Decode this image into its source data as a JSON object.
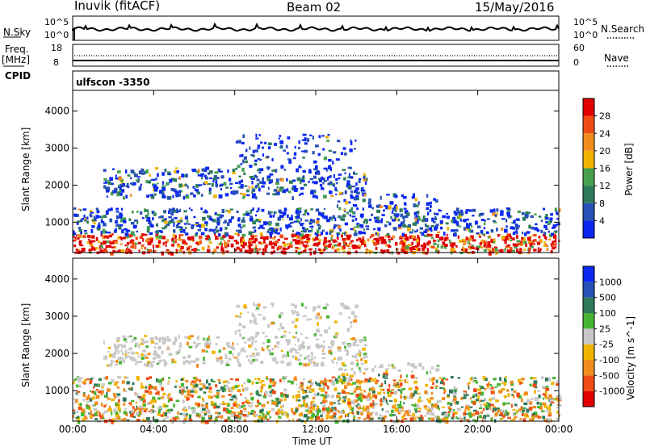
{
  "header": {
    "station": "Inuvik (fitACF)",
    "beam": "Beam 02",
    "date": "15/May/2016"
  },
  "top_panels": {
    "nsky_label": "N.Sky",
    "nsky_ticks": [
      "10^5",
      "10^0"
    ],
    "nsearch_label": "N.Search",
    "nsearch_ticks": [
      "10^5",
      "10^0"
    ],
    "freq_label": "Freq.",
    "freq_unit": "[MHz]",
    "freq_ticks": [
      "18",
      "8"
    ],
    "nave_label": "Nave",
    "nave_ticks": [
      "60",
      "0"
    ],
    "cpid_label": "CPID",
    "cpid_value": "ulfscon -3350"
  },
  "colors": {
    "power_scale": [
      "#0a28f0",
      "#2850b4",
      "#2e7a5a",
      "#46a050",
      "#f0b400",
      "#f08c1e",
      "#f04b14",
      "#e00000"
    ],
    "velocity_scale": [
      "#e00000",
      "#f04b14",
      "#f08c1e",
      "#f0b400",
      "#c8c8c8",
      "#46b432",
      "#2e7a5a",
      "#2850b4",
      "#0a28f0"
    ]
  },
  "chart_data": [
    {
      "type": "heatmap",
      "quantity": "power",
      "xlabel": "Time UT",
      "ylabel": "Slant Range [km]",
      "x_ticks": [
        "00:00",
        "04:00",
        "08:00",
        "12:00",
        "16:00",
        "20:00",
        "00:00"
      ],
      "y_ticks": [
        1000,
        2000,
        3000,
        4000
      ],
      "ylim": [
        180,
        4560
      ],
      "colorbar_label": "Power [dB]",
      "colorbar_ticks": [
        4,
        8,
        12,
        16,
        20,
        24,
        28
      ],
      "colorbar_range": [
        0,
        32
      ]
    },
    {
      "type": "heatmap",
      "quantity": "velocity",
      "xlabel": "Time UT",
      "ylabel": "Slant Range [km]",
      "x_ticks": [
        "00:00",
        "04:00",
        "08:00",
        "12:00",
        "16:00",
        "20:00",
        "00:00"
      ],
      "y_ticks": [
        1000,
        2000,
        3000,
        4000
      ],
      "ylim": [
        180,
        4560
      ],
      "colorbar_label": "Velocity [m s^-1]",
      "colorbar_ticks": [
        "1000",
        "500",
        "100",
        "25",
        "-25",
        "-100",
        "-500",
        "-1000"
      ]
    }
  ],
  "x_axis_title": "Time UT"
}
